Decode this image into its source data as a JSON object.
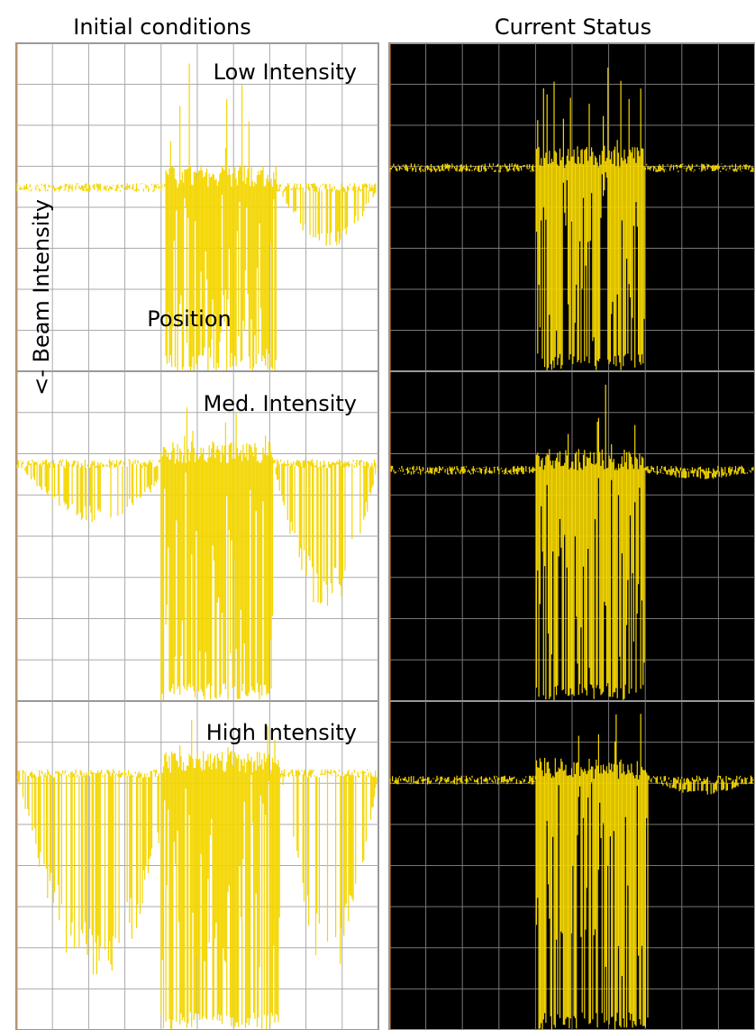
{
  "header": {
    "left_title": "Initial conditions",
    "right_title": "Current Status"
  },
  "panels": {
    "low_label": "Low Intensity",
    "med_label": "Med. Intensity",
    "high_label": "High Intensity"
  },
  "axes": {
    "y_label": "<-  Beam Intensity",
    "x_label": "Position"
  }
}
